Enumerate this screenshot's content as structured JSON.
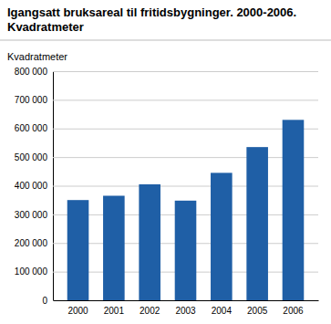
{
  "chart_data": {
    "type": "bar",
    "title": "Igangsatt bruksareal til fritidsbygninger. 2000-2006.",
    "subtitle": "Kvadratmeter",
    "ylabel": "Kvadratmeter",
    "categories": [
      "2000",
      "2001",
      "2002",
      "2003",
      "2004",
      "2005",
      "2006"
    ],
    "values": [
      350000,
      365000,
      405000,
      348000,
      445000,
      535000,
      630000
    ],
    "color": "#1f5fa6",
    "ylim": [
      0,
      800000
    ],
    "yticks": [
      0,
      {
        "value": 100000,
        "label": "100 000"
      },
      {
        "value": 200000,
        "label": "200 000"
      },
      {
        "value": 300000,
        "label": "300 000"
      },
      {
        "value": 400000,
        "label": "400 000"
      },
      {
        "value": 500000,
        "label": "500 000"
      },
      {
        "value": 600000,
        "label": "600 000"
      },
      {
        "value": 700000,
        "label": "700 000"
      },
      {
        "value": 800000,
        "label": "800 000"
      }
    ],
    "grid": true
  }
}
